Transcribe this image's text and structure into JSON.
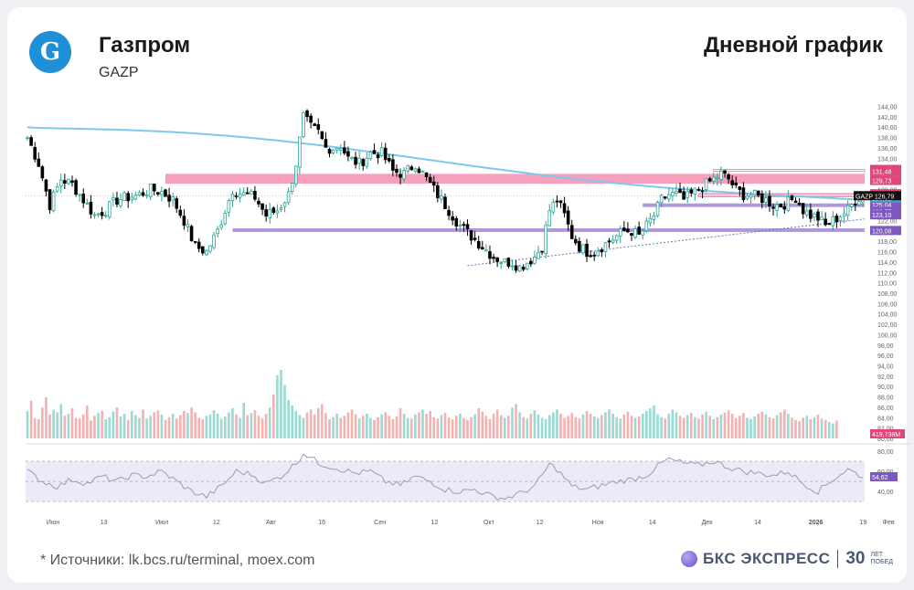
{
  "header": {
    "company": "Газпром",
    "ticker": "GAZP",
    "chart_title": "Дневной график",
    "logo_letter": "G"
  },
  "footer": {
    "sources": "*  Источники: lk.bcs.ru/terminal, moex.com",
    "brand_name": "БКС ЭКСПРЕСС",
    "brand_years": "30",
    "brand_years_caption": "ЛЕТ ПОБЕД"
  },
  "colors": {
    "up": "#26a69a",
    "down": "#000000",
    "ma": "#7fc8ea",
    "resistance": "#f48fb1",
    "support": "#9575cd",
    "rsi": "#9e9ab8",
    "rsi_band": "#ede9f7",
    "trend": "#5c7fb5"
  },
  "chart_data": [
    {
      "type": "candlestick",
      "x_labels": [
        "Июн",
        "13",
        "Июл",
        "12",
        "Авг",
        "16",
        "Сен",
        "12",
        "Окт",
        "12",
        "Ноя",
        "14",
        "Дек",
        "14",
        "2026",
        "19",
        "Фев"
      ],
      "y_ticks": [
        "144,00",
        "142,00",
        "140,00",
        "138,00",
        "136,00",
        "134,00",
        "132,00",
        "130,00",
        "128,00",
        "126,00",
        "124,00",
        "122,00",
        "120,00",
        "118,00",
        "116,00",
        "114,00",
        "112,00",
        "110,00",
        "108,00",
        "106,00",
        "104,00",
        "102,00",
        "100,00",
        "98,00",
        "96,00",
        "94,00",
        "92,00",
        "90,00",
        "88,00",
        "86,00",
        "84,00",
        "82,00",
        "80,00"
      ],
      "ylim": [
        80,
        145.5
      ],
      "last_price": 126.79,
      "last_label": "GAZP",
      "ma_value": 126.32,
      "close_path": [
        [
          0,
          138
        ],
        [
          3,
          133
        ],
        [
          6,
          125
        ],
        [
          9,
          130
        ],
        [
          12,
          129
        ],
        [
          15,
          126
        ],
        [
          18,
          123
        ],
        [
          21,
          124
        ],
        [
          24,
          126
        ],
        [
          27,
          126.5
        ],
        [
          30,
          127
        ],
        [
          33,
          128
        ],
        [
          36,
          127.5
        ],
        [
          39,
          126
        ],
        [
          42,
          122
        ],
        [
          45,
          117
        ],
        [
          48,
          116
        ],
        [
          51,
          120
        ],
        [
          53,
          124
        ],
        [
          55,
          128
        ],
        [
          58,
          127
        ],
        [
          61,
          126.5
        ],
        [
          64,
          123
        ],
        [
          67,
          124
        ],
        [
          70,
          127
        ],
        [
          72,
          133
        ],
        [
          74,
          142
        ],
        [
          76,
          140
        ],
        [
          78,
          139
        ],
        [
          80,
          136
        ],
        [
          82,
          136
        ],
        [
          84,
          136.5
        ],
        [
          86,
          134
        ],
        [
          89,
          133
        ],
        [
          92,
          135
        ],
        [
          95,
          135
        ],
        [
          98,
          131.5
        ],
        [
          101,
          131
        ],
        [
          104,
          133
        ],
        [
          107,
          130
        ],
        [
          110,
          127
        ],
        [
          113,
          124
        ],
        [
          116,
          121
        ],
        [
          119,
          119
        ],
        [
          122,
          117
        ],
        [
          125,
          115
        ],
        [
          128,
          114
        ],
        [
          130,
          114
        ],
        [
          132,
          113
        ],
        [
          134,
          114
        ],
        [
          136,
          115
        ],
        [
          138,
          117
        ],
        [
          140,
          124
        ],
        [
          142,
          126
        ],
        [
          144,
          123
        ],
        [
          146,
          119
        ],
        [
          148,
          117
        ],
        [
          150,
          116
        ],
        [
          152,
          116
        ],
        [
          154,
          117
        ],
        [
          156,
          118
        ],
        [
          158,
          119
        ],
        [
          160,
          120
        ],
        [
          162,
          120
        ],
        [
          164,
          119
        ],
        [
          166,
          121
        ],
        [
          168,
          123
        ],
        [
          170,
          126
        ],
        [
          172,
          127
        ],
        [
          174,
          127
        ],
        [
          176,
          126
        ],
        [
          178,
          127
        ],
        [
          180,
          128
        ],
        [
          182,
          129
        ],
        [
          184,
          130
        ],
        [
          186,
          131
        ],
        [
          188,
          130
        ],
        [
          190,
          128
        ],
        [
          192,
          127
        ],
        [
          194,
          127
        ],
        [
          196,
          126.5
        ],
        [
          198,
          126
        ],
        [
          200,
          125
        ],
        [
          202,
          125
        ],
        [
          204,
          125.5
        ],
        [
          206,
          126.5
        ],
        [
          208,
          124
        ],
        [
          210,
          123
        ],
        [
          212,
          122.5
        ],
        [
          214,
          121
        ],
        [
          216,
          122
        ],
        [
          218,
          123
        ],
        [
          220,
          124
        ],
        [
          222,
          126
        ],
        [
          224,
          126.79
        ]
      ],
      "volume": {
        "label": "419,738M",
        "bars": [
          40,
          55,
          30,
          28,
          45,
          60,
          35,
          42,
          38,
          50,
          33,
          36,
          44,
          30,
          29,
          35,
          48,
          26,
          33,
          37,
          40,
          28,
          31,
          39,
          45,
          32,
          36,
          27,
          40,
          34,
          30,
          42,
          29,
          33,
          38,
          41,
          35,
          27,
          31,
          36,
          29,
          34,
          40,
          37,
          45,
          38,
          30,
          28,
          33,
          35,
          41,
          36,
          29,
          32,
          38,
          44,
          35,
          30,
          52,
          34,
          37,
          41,
          33,
          29,
          36,
          45,
          64,
          92,
          100,
          78,
          56,
          48,
          40,
          34,
          30,
          38,
          42,
          35,
          44,
          50,
          37,
          28,
          31,
          36,
          30,
          33,
          38,
          42,
          35,
          29,
          33,
          36,
          30,
          27,
          31,
          35,
          38,
          33,
          28,
          32,
          44,
          36,
          30,
          29,
          35,
          38,
          42,
          36,
          40,
          31,
          29,
          34,
          37,
          30,
          28,
          33,
          36,
          30,
          27,
          31,
          35,
          44,
          39,
          33,
          28,
          36,
          42,
          34,
          30,
          33,
          45,
          50,
          38,
          31,
          29,
          36,
          41,
          35,
          30,
          28,
          34,
          38,
          42,
          36,
          30,
          33,
          37,
          31,
          29,
          35,
          40,
          36,
          32,
          30,
          34,
          38,
          42,
          36,
          31,
          29,
          35,
          39,
          33,
          30,
          32,
          36,
          40,
          44,
          48,
          35,
          31,
          29,
          36,
          42,
          38,
          33,
          30,
          34,
          37,
          31,
          29,
          35,
          39,
          33,
          28,
          31,
          35,
          38,
          41,
          36,
          30,
          33,
          37,
          30,
          28,
          32,
          36,
          39,
          35,
          31,
          29,
          34,
          38,
          42,
          36,
          30,
          27,
          25,
          30,
          33,
          28,
          31,
          35,
          29,
          27,
          24,
          22,
          26
        ]
      },
      "rsi": {
        "ticks": [
          "80,00",
          "60,00",
          "40,00"
        ],
        "value": "54,62",
        "ylim": [
          22,
          80
        ],
        "path": [
          [
            0,
            60
          ],
          [
            4,
            50
          ],
          [
            8,
            45
          ],
          [
            12,
            52
          ],
          [
            16,
            48
          ],
          [
            20,
            55
          ],
          [
            24,
            50
          ],
          [
            28,
            56
          ],
          [
            32,
            55
          ],
          [
            36,
            60
          ],
          [
            40,
            50
          ],
          [
            44,
            40
          ],
          [
            48,
            35
          ],
          [
            52,
            45
          ],
          [
            56,
            60
          ],
          [
            60,
            57
          ],
          [
            64,
            48
          ],
          [
            68,
            55
          ],
          [
            72,
            68
          ],
          [
            74,
            78
          ],
          [
            76,
            74
          ],
          [
            78,
            68
          ],
          [
            80,
            66
          ],
          [
            84,
            62
          ],
          [
            88,
            58
          ],
          [
            92,
            60
          ],
          [
            96,
            50
          ],
          [
            100,
            46
          ],
          [
            104,
            55
          ],
          [
            108,
            50
          ],
          [
            112,
            42
          ],
          [
            116,
            40
          ],
          [
            120,
            42
          ],
          [
            124,
            36
          ],
          [
            128,
            33
          ],
          [
            132,
            38
          ],
          [
            136,
            45
          ],
          [
            140,
            67
          ],
          [
            142,
            62
          ],
          [
            146,
            45
          ],
          [
            150,
            42
          ],
          [
            154,
            46
          ],
          [
            158,
            50
          ],
          [
            162,
            52
          ],
          [
            166,
            56
          ],
          [
            170,
            68
          ],
          [
            172,
            72
          ],
          [
            176,
            68
          ],
          [
            180,
            66
          ],
          [
            184,
            70
          ],
          [
            188,
            64
          ],
          [
            192,
            60
          ],
          [
            196,
            58
          ],
          [
            200,
            56
          ],
          [
            204,
            60
          ],
          [
            208,
            48
          ],
          [
            212,
            40
          ],
          [
            216,
            52
          ],
          [
            220,
            62
          ],
          [
            224,
            54.62
          ]
        ]
      },
      "zones_resistance": [
        {
          "range": [
            129.1,
            131.0
          ],
          "label": ""
        },
        {
          "range": [
            126.79,
            127.16
          ],
          "label": ""
        }
      ],
      "zones_support": [
        {
          "range": [
            124.6,
            125.3
          ],
          "label": ""
        },
        {
          "range": [
            119.8,
            120.5
          ],
          "label": ""
        }
      ],
      "level_labels_red": [
        "131,85",
        "131,48",
        "129,73",
        "127,16",
        "126,86"
      ],
      "level_labels_purple": [
        "125,82",
        "125,04",
        "123,77",
        "123,10",
        "120,08"
      ],
      "ma_label": "126,32",
      "trendline": [
        [
          118,
          113.3
        ],
        [
          224,
          122.3
        ]
      ]
    }
  ]
}
